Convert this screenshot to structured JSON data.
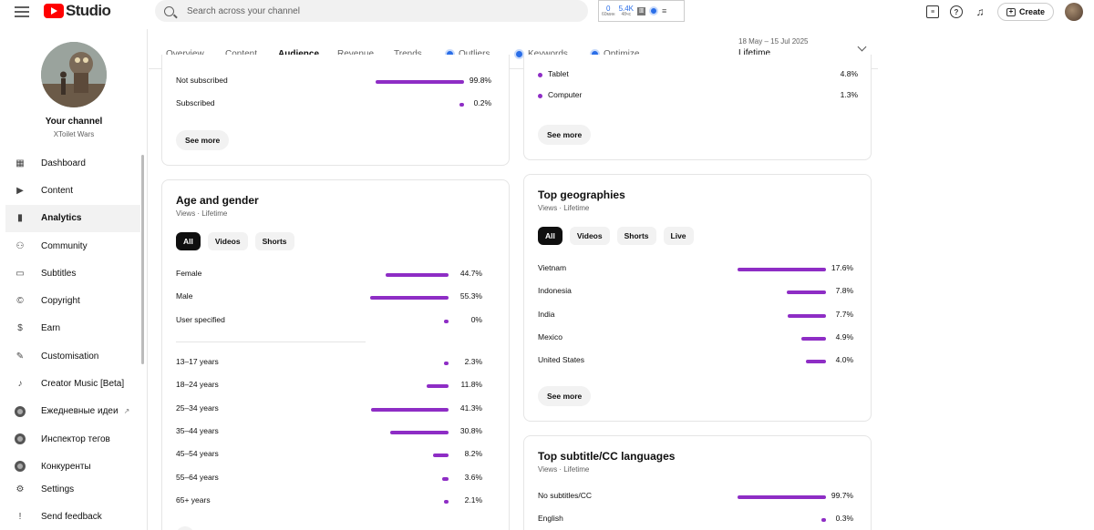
{
  "header": {
    "logo_text": "Studio",
    "search_placeholder": "Search across your channel",
    "ext": {
      "stat1_value": "0",
      "stat1_label": "60мин",
      "stat2_value": "5.4K",
      "stat2_label": "48чс"
    },
    "create_label": "Create"
  },
  "sidebar": {
    "channel_title": "Your channel",
    "channel_name": "XToilet Wars",
    "items": [
      {
        "label": "Dashboard",
        "icon": "dashboard-icon"
      },
      {
        "label": "Content",
        "icon": "content-icon"
      },
      {
        "label": "Analytics",
        "icon": "analytics-icon"
      },
      {
        "label": "Community",
        "icon": "community-icon"
      },
      {
        "label": "Subtitles",
        "icon": "subtitles-icon"
      },
      {
        "label": "Copyright",
        "icon": "copyright-icon"
      },
      {
        "label": "Earn",
        "icon": "earn-icon"
      },
      {
        "label": "Customisation",
        "icon": "customisation-icon"
      },
      {
        "label": "Creator Music [Beta]",
        "icon": "music-icon"
      },
      {
        "label": "Ежедневные идеи",
        "icon": "extension-dot-icon"
      },
      {
        "label": "Инспектор тегов",
        "icon": "extension-dot-icon"
      },
      {
        "label": "Конкуренты",
        "icon": "extension-dot-icon"
      },
      {
        "label": "Settings",
        "icon": "settings-icon"
      },
      {
        "label": "Send feedback",
        "icon": "feedback-icon"
      }
    ]
  },
  "tabs": [
    {
      "label": "Overview"
    },
    {
      "label": "Content"
    },
    {
      "label": "Audience"
    },
    {
      "label": "Revenue"
    },
    {
      "label": "Trends"
    },
    {
      "label": "Outliers"
    },
    {
      "label": "Keywords"
    },
    {
      "label": "Optimize"
    }
  ],
  "date_range": {
    "range": "18 May – 15 Jul 2025",
    "label": "Lifetime"
  },
  "subscription_card": {
    "rows": [
      {
        "label": "Not subscribed",
        "value": "99.8%",
        "fraction": 0.998
      },
      {
        "label": "Subscribed",
        "value": "0.2%",
        "fraction": 0.002
      }
    ],
    "see_more": "See more"
  },
  "device_card": {
    "rows": [
      {
        "label": "Tablet",
        "value": "4.8%"
      },
      {
        "label": "Computer",
        "value": "1.3%"
      }
    ],
    "see_more": "See more"
  },
  "age_gender_card": {
    "title": "Age and gender",
    "subtitle": "Views · Lifetime",
    "chips": [
      "All",
      "Videos",
      "Shorts"
    ],
    "gender_rows": [
      {
        "label": "Female",
        "value": "44.7%",
        "fraction": 0.447
      },
      {
        "label": "Male",
        "value": "55.3%",
        "fraction": 0.553
      },
      {
        "label": "User specified",
        "value": "0%",
        "fraction": 0
      }
    ],
    "age_rows": [
      {
        "label": "13–17 years",
        "value": "2.3%",
        "fraction": 0.023
      },
      {
        "label": "18–24 years",
        "value": "11.8%",
        "fraction": 0.118
      },
      {
        "label": "25–34 years",
        "value": "41.3%",
        "fraction": 0.413
      },
      {
        "label": "35–44 years",
        "value": "30.8%",
        "fraction": 0.308
      },
      {
        "label": "45–54 years",
        "value": "8.2%",
        "fraction": 0.082
      },
      {
        "label": "55–64 years",
        "value": "3.6%",
        "fraction": 0.036
      },
      {
        "label": "65+ years",
        "value": "2.1%",
        "fraction": 0.021
      }
    ]
  },
  "geo_card": {
    "title": "Top geographies",
    "subtitle": "Views · Lifetime",
    "chips": [
      "All",
      "Videos",
      "Shorts",
      "Live"
    ],
    "rows": [
      {
        "label": "Vietnam",
        "value": "17.6%",
        "fraction": 0.176
      },
      {
        "label": "Indonesia",
        "value": "7.8%",
        "fraction": 0.078
      },
      {
        "label": "India",
        "value": "7.7%",
        "fraction": 0.077
      },
      {
        "label": "Mexico",
        "value": "4.9%",
        "fraction": 0.049
      },
      {
        "label": "United States",
        "value": "4.0%",
        "fraction": 0.04
      }
    ],
    "see_more": "See more"
  },
  "subtitle_card": {
    "title": "Top subtitle/CC languages",
    "subtitle": "Views · Lifetime",
    "rows": [
      {
        "label": "No subtitles/CC",
        "value": "99.7%",
        "fraction": 0.997
      },
      {
        "label": "English",
        "value": "0.3%",
        "fraction": 0.003
      }
    ]
  },
  "colors": {
    "accent": "#8e2dc5",
    "brand": "#ff0000",
    "ext_blue": "#2a6ee8"
  }
}
